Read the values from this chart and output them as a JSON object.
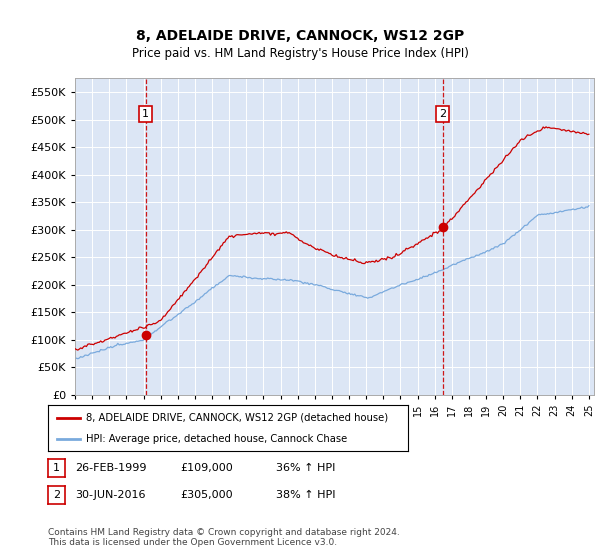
{
  "title": "8, ADELAIDE DRIVE, CANNOCK, WS12 2GP",
  "subtitle": "Price paid vs. HM Land Registry's House Price Index (HPI)",
  "bg_color": "#dce6f5",
  "sale1_x": 1999.12,
  "sale1_price": 109000,
  "sale2_x": 2016.46,
  "sale2_price": 305000,
  "legend_line1": "8, ADELAIDE DRIVE, CANNOCK, WS12 2GP (detached house)",
  "legend_line2": "HPI: Average price, detached house, Cannock Chase",
  "sale1_text": "26-FEB-1999",
  "sale1_amt": "£109,000",
  "sale1_hpi": "36% ↑ HPI",
  "sale2_text": "30-JUN-2016",
  "sale2_amt": "£305,000",
  "sale2_hpi": "38% ↑ HPI",
  "footer": "Contains HM Land Registry data © Crown copyright and database right 2024.\nThis data is licensed under the Open Government Licence v3.0.",
  "line_red": "#cc0000",
  "line_blue": "#7aaadd",
  "ylim_min": 0,
  "ylim_max": 575000
}
